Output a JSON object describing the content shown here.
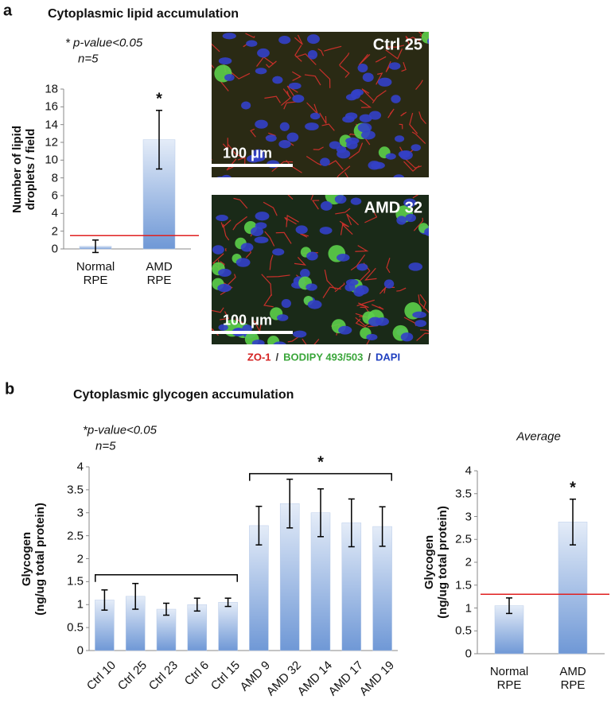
{
  "figure": {
    "panels": [
      {
        "label": "a",
        "title": "Cytoplasmic lipid accumulation",
        "significance": "* p-value<0.05",
        "n": "n=5",
        "images": [
          {
            "label": "Ctrl 25",
            "scale_bar": "100 μm"
          },
          {
            "label": "AMD 32",
            "scale_bar": "100 μm"
          }
        ],
        "stain_legend": [
          {
            "text": "ZO-1",
            "color": "#d42020"
          },
          {
            "text": "BODIPY 493/503",
            "color": "#3aa63a"
          },
          {
            "text": "DAPI",
            "color": "#2040c0"
          }
        ],
        "stain_separator": "/"
      },
      {
        "label": "b",
        "title": "Cytoplasmic glycogen accumulation",
        "significance": "*p-value<0.05",
        "n": "n=5"
      }
    ]
  },
  "chart_data": [
    {
      "type": "bar",
      "ylabel": "Number of lipid\ndroplets / field",
      "categories": [
        "Normal\nRPE",
        "AMD\nRPE"
      ],
      "values": [
        0.3,
        12.3
      ],
      "errors": [
        0.7,
        3.3
      ],
      "color": "#6f98d6",
      "ylim": [
        0,
        18
      ],
      "yticks": [
        0,
        2,
        4,
        6,
        8,
        10,
        12,
        14,
        16,
        18
      ],
      "reference_line": {
        "value": 1.5,
        "color": "#e02020"
      },
      "annotation": "*"
    },
    {
      "type": "bar",
      "ylabel": "Glycogen\n(ng/ug total protein)",
      "categories": [
        "Ctrl 10",
        "Ctrl 25",
        "Ctrl 23",
        "Ctrl 6",
        "Ctrl 15",
        "AMD 9",
        "AMD 32",
        "AMD 14",
        "AMD 17",
        "AMD 19"
      ],
      "values": [
        1.1,
        1.18,
        0.9,
        1.0,
        1.05,
        2.72,
        3.2,
        3.0,
        2.78,
        2.7
      ],
      "errors": [
        0.22,
        0.28,
        0.13,
        0.14,
        0.09,
        0.42,
        0.53,
        0.52,
        0.52,
        0.43
      ],
      "color": "#6f98d6",
      "ylim": [
        0,
        4
      ],
      "yticks": [
        0,
        0.5,
        1,
        1.5,
        2,
        2.5,
        3,
        3.5,
        4
      ],
      "brackets": [
        {
          "from": "Ctrl 10",
          "to": "Ctrl 15",
          "y": 1.65
        },
        {
          "from": "AMD 9",
          "to": "AMD 19",
          "y": 3.85,
          "label": "*"
        }
      ]
    },
    {
      "type": "bar",
      "title": "Average",
      "ylabel": "Glycogen\n(ng/ug total protein)",
      "categories": [
        "Normal\nRPE",
        "AMD RPE"
      ],
      "values": [
        1.05,
        2.88
      ],
      "errors": [
        0.17,
        0.5
      ],
      "color": "#6f98d6",
      "ylim": [
        0,
        4
      ],
      "yticks": [
        0,
        0.5,
        1,
        1.5,
        2,
        2.5,
        3,
        3.5,
        4
      ],
      "reference_line": {
        "value": 1.3,
        "color": "#e02020"
      },
      "annotation": "*"
    }
  ]
}
